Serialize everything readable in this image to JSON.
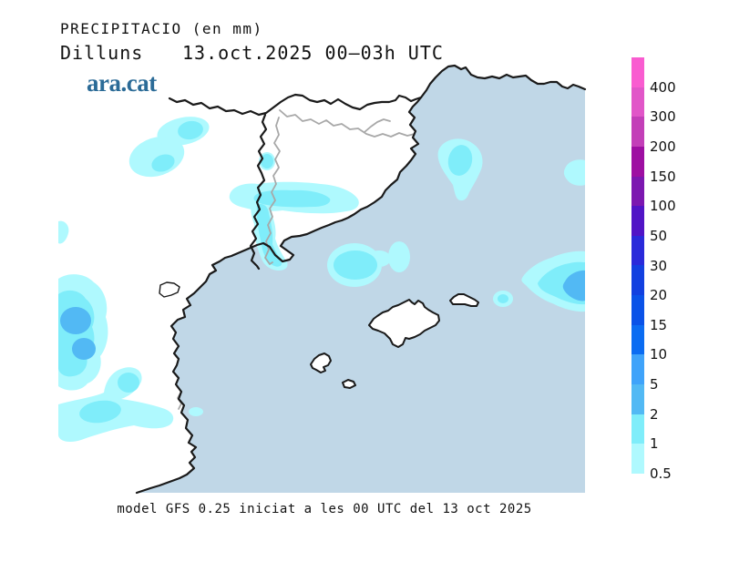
{
  "header": {
    "title": "PRECIPITACIO (en mm)",
    "day": "Dilluns",
    "datetime": "13.oct.2025 00–03h UTC",
    "logo": "ara.cat"
  },
  "footer": {
    "caption": "model GFS 0.25 iniciat a les 00 UTC del 13 oct 2025"
  },
  "map": {
    "description": "Precipitation forecast map of Catalonia, the Valencian coast, southern France and the Balearic Islands",
    "colors": {
      "sea": "#C0D7E7",
      "land": "#FFFFFF",
      "coastline": "#1A1A1A",
      "inner_border": "#A8A8A8",
      "bin_0_5_1": "#AFF9FE",
      "bin_1_2": "#7FEDFA",
      "bin_2_5": "#52B9F4"
    },
    "precipitation_areas": [
      {
        "area": "NW interior (Aragon pre-Pyrenees)",
        "range_mm": "0.5–2"
      },
      {
        "area": "Central Catalonia west–east band",
        "range_mm": "0.5–2"
      },
      {
        "area": "Ebro valley border strip down to the delta coast",
        "range_mm": "0.5–2"
      },
      {
        "area": "Sea off Girona / Costa Brava",
        "range_mm": "0.5–2"
      },
      {
        "area": "NE map edge at sea",
        "range_mm": "0.5–1"
      },
      {
        "area": "Open sea between mainland and Balearics",
        "range_mm": "0.5–2"
      },
      {
        "area": "East of Menorca",
        "range_mm": "0.5–2"
      },
      {
        "area": "Sea at east map edge",
        "range_mm": "0.5–5"
      },
      {
        "area": "Inland Valencia / SW map edge",
        "range_mm": "0.5–5"
      },
      {
        "area": "SW arm toward Valencian coast",
        "range_mm": "0.5–2"
      }
    ]
  },
  "legend": {
    "unit": "mm",
    "labels": [
      "400",
      "300",
      "200",
      "150",
      "100",
      "50",
      "30",
      "20",
      "15",
      "10",
      "5",
      "2",
      "1",
      "0.5"
    ],
    "colors": [
      "#F95CD0",
      "#E156C8",
      "#C33FB8",
      "#9E0FA2",
      "#7C17B0",
      "#5114C6",
      "#2A2ADA",
      "#1240E0",
      "#0A52E8",
      "#0B6CF2",
      "#3FA3FA",
      "#52B9F4",
      "#7FEDFA",
      "#AFF9FE"
    ]
  }
}
